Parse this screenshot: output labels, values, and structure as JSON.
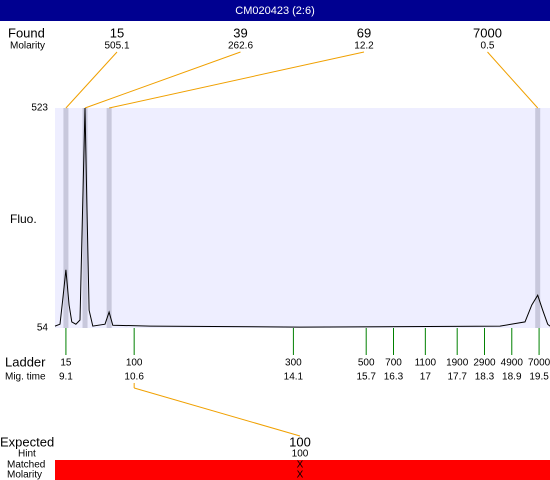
{
  "title_bar": "CM020423 (2:6)",
  "chart_data": {
    "type": "electropherogram",
    "y_label": "Fluo.",
    "ylim": [
      54,
      523
    ],
    "yticks": [
      54,
      523
    ],
    "xlim": [
      8.86,
      19.74
    ],
    "x": [
      8.86,
      8.97,
      9.03,
      9.1,
      9.17,
      9.23,
      9.32,
      9.41,
      9.47,
      9.52,
      9.56,
      9.61,
      9.69,
      9.96,
      10.05,
      10.13,
      10.95,
      14.24,
      18.64,
      19.19,
      19.34,
      19.47,
      19.58,
      19.69,
      19.74
    ],
    "values": [
      58,
      62,
      114,
      178,
      103,
      67,
      62,
      71,
      327,
      523,
      327,
      92,
      58,
      62,
      88,
      60,
      58,
      56,
      58,
      67,
      103,
      124,
      92,
      62,
      58
    ],
    "color": "#000000",
    "plot_color": "#eeeeff"
  },
  "found": {
    "label": "Found",
    "molarity_label": "Molarity",
    "peaks": [
      {
        "size": 15,
        "molarity": 505.1,
        "mig_time": 9.1
      },
      {
        "size": 39,
        "molarity": 262.6,
        "mig_time": 9.52
      },
      {
        "size": 69,
        "molarity": 12.2,
        "mig_time": 10.05
      },
      {
        "size": 7000,
        "molarity": 0.5,
        "mig_time": 19.47
      }
    ]
  },
  "ladder": {
    "label": "Ladder",
    "mig_time_label": "Mig. time",
    "sizes": [
      15,
      100,
      300,
      500,
      700,
      1100,
      1900,
      2900,
      4900,
      7000
    ],
    "mig_times": [
      9.1,
      10.6,
      14.1,
      15.7,
      16.3,
      17,
      17.7,
      18.3,
      18.9,
      19.5
    ]
  },
  "expected": {
    "label": "Expected",
    "hint_label": "Hint",
    "matched_label": "Matched",
    "molarity_label": "Molarity",
    "size": 100,
    "hint": 100,
    "matched": "X",
    "molarity": "X"
  }
}
